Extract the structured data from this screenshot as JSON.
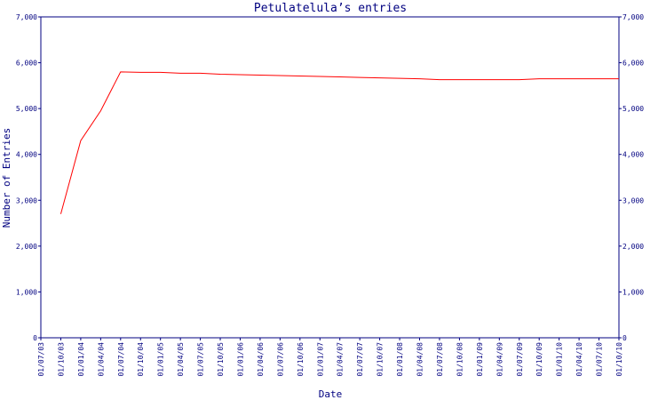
{
  "chart_data": {
    "type": "line",
    "title": "Petulatelula’s entries",
    "x_label": "Date",
    "y_label": "Number of Entries",
    "categories": [
      "01/07/03",
      "01/10/03",
      "01/01/04",
      "01/04/04",
      "01/07/04",
      "01/10/04",
      "01/01/05",
      "01/04/05",
      "01/07/05",
      "01/10/05",
      "01/01/06",
      "01/04/06",
      "01/07/06",
      "01/10/06",
      "01/01/07",
      "01/04/07",
      "01/07/07",
      "01/10/07",
      "01/01/08",
      "01/04/08",
      "01/07/08",
      "01/10/08",
      "01/01/09",
      "01/04/09",
      "01/07/09",
      "01/10/09",
      "01/01/10",
      "01/04/10",
      "01/07/10",
      "01/10/10"
    ],
    "series": [
      {
        "name": "Entries",
        "color": "#ff0000",
        "values": [
          null,
          2700,
          4300,
          4950,
          5800,
          5790,
          5790,
          5770,
          5770,
          5750,
          5740,
          5730,
          5720,
          5710,
          5700,
          5690,
          5680,
          5670,
          5660,
          5650,
          5630,
          5630,
          5630,
          5630,
          5630,
          5650,
          5650,
          5650,
          5650,
          5650
        ]
      }
    ],
    "ylim": [
      0,
      7000
    ],
    "yticks": [
      0,
      {
        "value": 1000,
        "label": "1,000"
      },
      {
        "value": 2000,
        "label": "2,000"
      },
      {
        "value": 3000,
        "label": "3,000"
      },
      {
        "value": 4000,
        "label": "4,000"
      },
      {
        "value": 5000,
        "label": "5,000"
      },
      {
        "value": 6000,
        "label": "6,000"
      },
      {
        "value": 7000,
        "label": "7,000"
      }
    ],
    "right_axis": true,
    "grid": false
  }
}
